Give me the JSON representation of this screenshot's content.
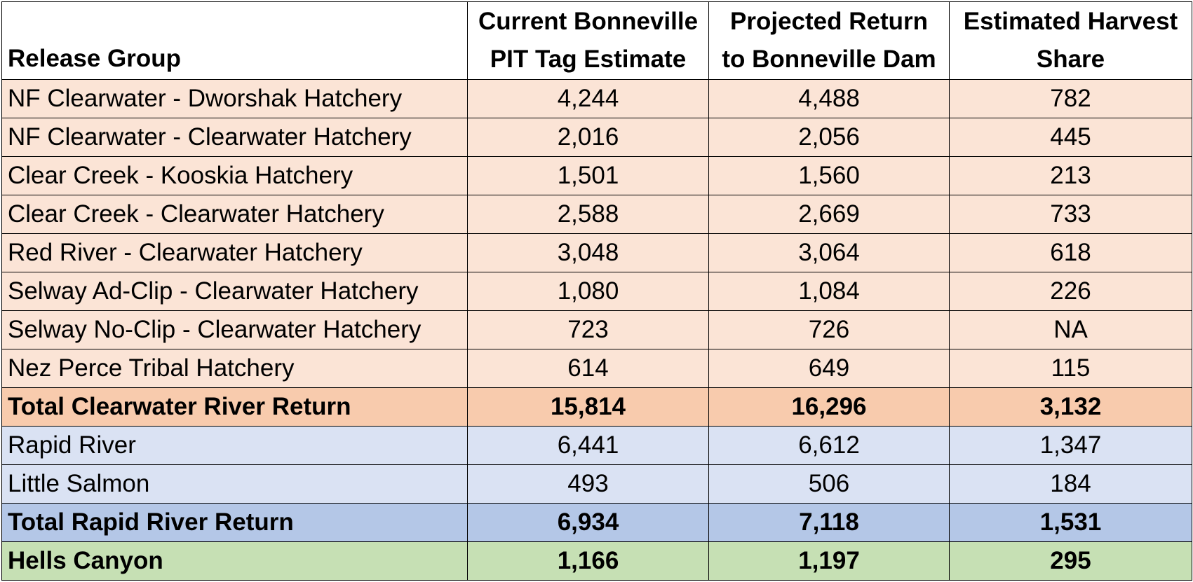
{
  "table": {
    "headers": {
      "release_group": "Release Group",
      "current_line1": "Current Bonneville",
      "current_line2": "PIT Tag Estimate",
      "projected_line1": "Projected Return",
      "projected_line2": "to Bonneville Dam",
      "harvest_line1": "Estimated Harvest",
      "harvest_line2": "Share"
    },
    "rows": [
      {
        "group": "NF Clearwater - Dworshak Hatchery",
        "current": "4,244",
        "projected": "4,488",
        "harvest": "782"
      },
      {
        "group": "NF Clearwater - Clearwater Hatchery",
        "current": "2,016",
        "projected": "2,056",
        "harvest": "445"
      },
      {
        "group": "Clear Creek - Kooskia Hatchery",
        "current": "1,501",
        "projected": "1,560",
        "harvest": "213"
      },
      {
        "group": "Clear Creek - Clearwater Hatchery",
        "current": "2,588",
        "projected": "2,669",
        "harvest": "733"
      },
      {
        "group": "Red River - Clearwater Hatchery",
        "current": "3,048",
        "projected": "3,064",
        "harvest": "618"
      },
      {
        "group": "Selway Ad-Clip - Clearwater Hatchery",
        "current": "1,080",
        "projected": "1,084",
        "harvest": "226"
      },
      {
        "group": "Selway No-Clip - Clearwater Hatchery",
        "current": "723",
        "projected": "726",
        "harvest": "NA"
      },
      {
        "group": "Nez Perce Tribal Hatchery",
        "current": "614",
        "projected": "649",
        "harvest": "115"
      },
      {
        "group": "Total Clearwater River Return",
        "current": "15,814",
        "projected": "16,296",
        "harvest": "3,132"
      },
      {
        "group": "Rapid River",
        "current": "6,441",
        "projected": "6,612",
        "harvest": "1,347"
      },
      {
        "group": "Little Salmon",
        "current": "493",
        "projected": "506",
        "harvest": "184"
      },
      {
        "group": "Total Rapid River Return",
        "current": "6,934",
        "projected": "7,118",
        "harvest": "1,531"
      },
      {
        "group": "Hells Canyon",
        "current": "1,166",
        "projected": "1,197",
        "harvest": "295"
      }
    ]
  },
  "colors": {
    "clearwater_rows": "#fbe4d6",
    "clearwater_total": "#f8cbad",
    "rapid_rows": "#dae2f3",
    "rapid_total": "#b4c7e7",
    "hells_canyon": "#c6e0b4",
    "border": "#000000"
  }
}
